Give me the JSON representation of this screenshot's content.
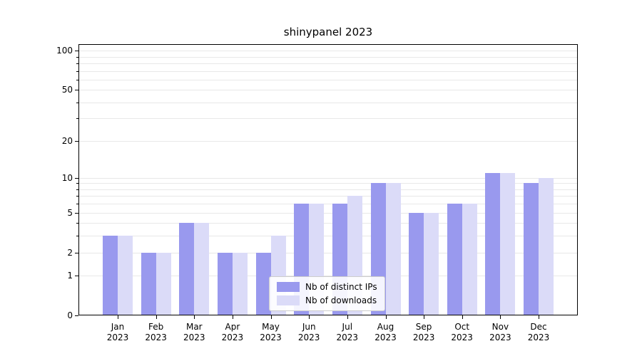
{
  "chart_data": {
    "type": "bar",
    "title": "shinypanel 2023",
    "year_label": "2023",
    "categories": [
      "Jan",
      "Feb",
      "Mar",
      "Apr",
      "May",
      "Jun",
      "Jul",
      "Aug",
      "Sep",
      "Oct",
      "Nov",
      "Dec"
    ],
    "series": [
      {
        "name": "Nb of distinct IPs",
        "color": "#9999ee",
        "values": [
          3,
          2,
          4,
          2,
          2,
          6,
          6,
          9,
          5,
          6,
          11,
          9
        ]
      },
      {
        "name": "Nb of downloads",
        "color": "#dbdbf8",
        "values": [
          3,
          2,
          4,
          2,
          3,
          6,
          7,
          9,
          5,
          6,
          11,
          10
        ]
      }
    ],
    "y_axis": {
      "scale": "log1p",
      "ticks": [
        0,
        1,
        2,
        5,
        10,
        20,
        50,
        100
      ],
      "minor_gridlines": [
        1,
        2,
        3,
        4,
        5,
        6,
        7,
        8,
        9,
        10,
        20,
        30,
        40,
        50,
        60,
        70,
        80,
        90,
        100
      ],
      "max": 112
    },
    "grid": "on",
    "legend": {
      "position": "lower center"
    }
  }
}
